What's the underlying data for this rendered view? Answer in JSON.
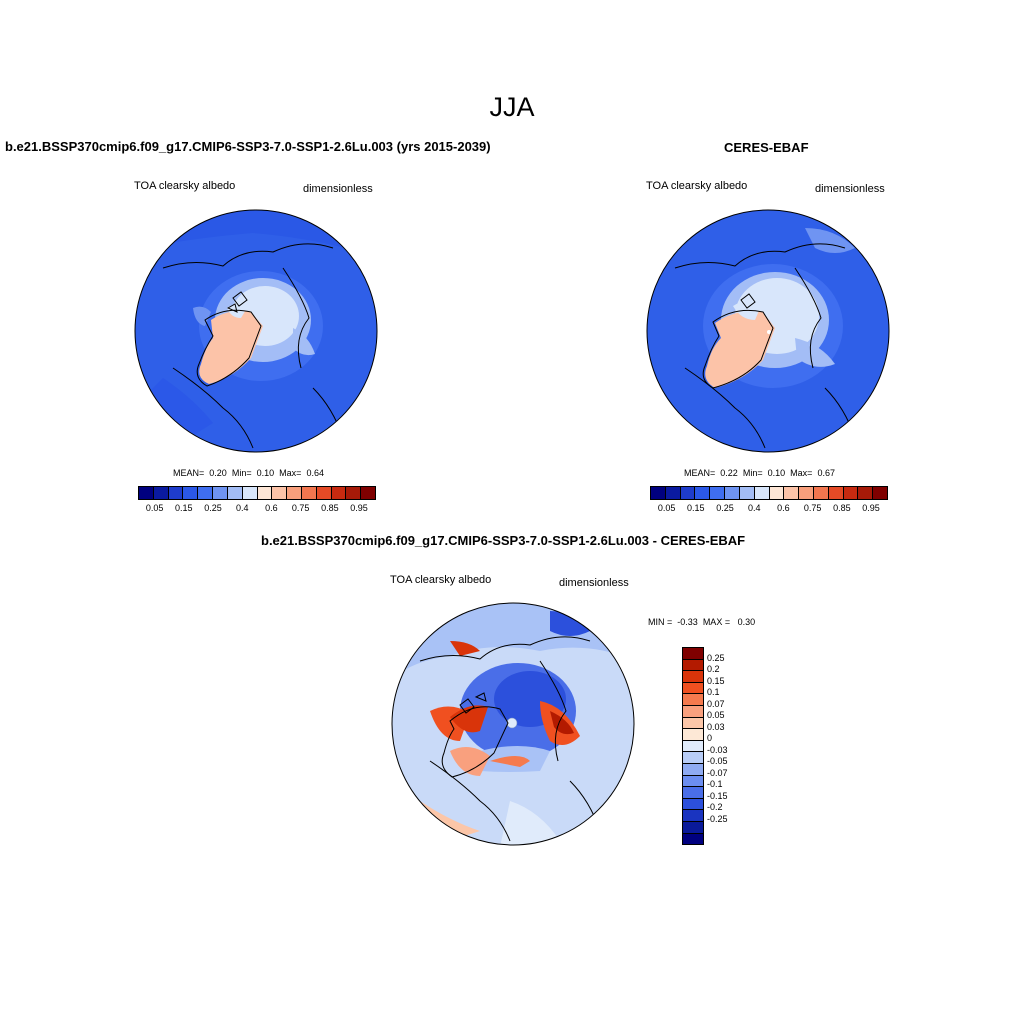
{
  "title": "JJA",
  "panels": [
    {
      "title": "b.e21.BSSP370cmip6.f09_g17.CMIP6-SSP3-7.0-SSP1-2.6Lu.003 (yrs 2015-2039)",
      "variable": "TOA clearsky albedo",
      "units": "dimensionless",
      "stats": {
        "mean_label": "MEAN=",
        "mean": "0.20",
        "min_label": "Min=",
        "min": "0.10",
        "max_label": "Max=",
        "max": "0.64"
      }
    },
    {
      "title": "CERES-EBAF",
      "variable": "TOA clearsky albedo",
      "units": "dimensionless",
      "stats": {
        "mean_label": "MEAN=",
        "mean": "0.22",
        "min_label": "Min=",
        "min": "0.10",
        "max_label": "Max=",
        "max": "0.67"
      }
    },
    {
      "title": "b.e21.BSSP370cmip6.f09_g17.CMIP6-SSP3-7.0-SSP1-2.6Lu.003 - CERES-EBAF",
      "variable": "TOA clearsky albedo",
      "units": "dimensionless",
      "range": {
        "min_label": "MIN =",
        "min": "-0.33",
        "max_label": "MAX =",
        "max": "0.30"
      }
    }
  ],
  "colorbar_horizontal": {
    "colors": [
      "#00007f",
      "#0a1aa0",
      "#1e3ccc",
      "#2b58e8",
      "#3f6ef0",
      "#6f94f2",
      "#a3bdf6",
      "#d8e6fb",
      "#fde6d6",
      "#fcc3a8",
      "#f89f7c",
      "#f2764f",
      "#e44a26",
      "#c72a10",
      "#a61a08",
      "#7f0000"
    ],
    "labels": [
      "0.05",
      "0.15",
      "0.25",
      "0.4",
      "0.6",
      "0.75",
      "0.85",
      "0.95"
    ]
  },
  "colorbar_vertical": {
    "colors": [
      "#7f0000",
      "#b31a00",
      "#d9340a",
      "#f05020",
      "#f57a4e",
      "#f9a07e",
      "#fcc6a8",
      "#fde8d6",
      "#e0ebfb",
      "#b8cdf7",
      "#8fabf2",
      "#6c8ef0",
      "#4a6ee8",
      "#2c50dc",
      "#1a34c0",
      "#0a1a9a",
      "#00007f"
    ],
    "labels": [
      "0.25",
      "0.2",
      "0.15",
      "0.1",
      "0.07",
      "0.05",
      "0.03",
      "0",
      "-0.03",
      "-0.05",
      "-0.07",
      "-0.1",
      "-0.15",
      "-0.2",
      "-0.25"
    ]
  }
}
